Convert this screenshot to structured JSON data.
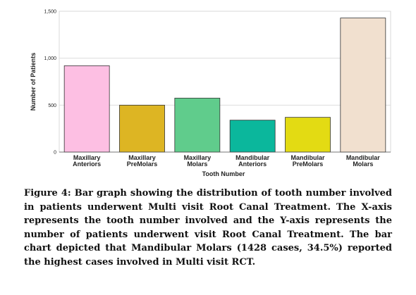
{
  "chart_data": {
    "type": "bar",
    "categories": [
      [
        "Maxillary",
        "Anteriors"
      ],
      [
        "Maxillary",
        "PreMolars"
      ],
      [
        "Maxillary",
        "Molars"
      ],
      [
        "Mandibular",
        "Anteriors"
      ],
      [
        "Mandibular",
        "PreMolars"
      ],
      [
        "Mandibular",
        "Molars"
      ]
    ],
    "values": [
      920,
      500,
      575,
      340,
      370,
      1428
    ],
    "colors": [
      "#FDBFE3",
      "#DDB523",
      "#60CC8C",
      "#0BB79C",
      "#E3DB13",
      "#F1E0CF"
    ],
    "xlabel": "Tooth Number",
    "ylabel": "Number of Patients",
    "ylim": [
      0,
      1500
    ],
    "yticks": [
      0,
      500,
      1000,
      1500
    ],
    "ytick_labels": [
      "0",
      "500",
      "1,000",
      "1,500"
    ],
    "grid": true
  },
  "caption": "Figure 4: Bar graph showing the distribution of tooth number involved in patients underwent Multi visit Root Canal Treatment. The X-axis represents the tooth number involved and the Y-axis represents the number of patients underwent visit Root Canal Treatment. The bar chart depicted that Mandibular Molars (1428 cases, 34.5%) reported the highest cases involved in Multi visit RCT."
}
